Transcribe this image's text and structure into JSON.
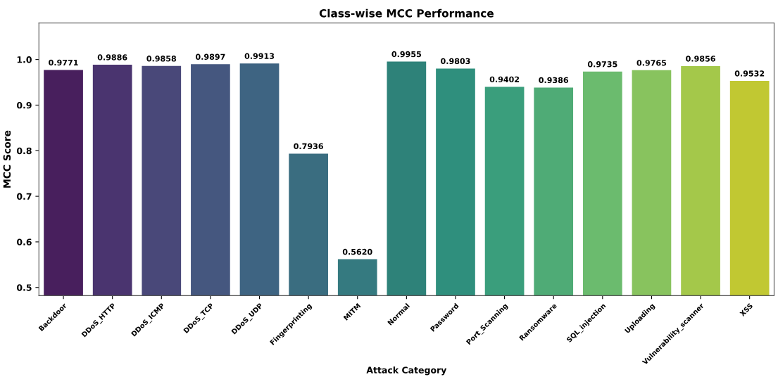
{
  "chart_data": {
    "type": "bar",
    "title": "Class-wise MCC Performance",
    "xlabel": "Attack Category",
    "ylabel": "MCC Score",
    "categories": [
      "Backdoor",
      "DDoS_HTTP",
      "DDoS_ICMP",
      "DDoS_TCP",
      "DDoS_UDP",
      "Fingerprinting",
      "MITM",
      "Normal",
      "Password",
      "Port_Scanning",
      "Ransomware",
      "SQL_injection",
      "Uploading",
      "Vulnerability_scanner",
      "XSS"
    ],
    "values": [
      0.9771,
      0.9886,
      0.9858,
      0.9897,
      0.9913,
      0.7936,
      0.562,
      0.9955,
      0.9803,
      0.9402,
      0.9386,
      0.9735,
      0.9765,
      0.9856,
      0.9532
    ],
    "value_labels": [
      "0.9771",
      "0.9886",
      "0.9858",
      "0.9897",
      "0.9913",
      "0.7936",
      "0.5620",
      "0.9955",
      "0.9803",
      "0.9402",
      "0.9386",
      "0.9735",
      "0.9765",
      "0.9856",
      "0.9532"
    ],
    "colors": [
      "#481f5d",
      "#4a346f",
      "#494879",
      "#45577f",
      "#3e6482",
      "#3a6d80",
      "#357a80",
      "#2e8279",
      "#2f8f7d",
      "#3a9e7c",
      "#4fab76",
      "#6bbb6e",
      "#88c35e",
      "#a4c84a",
      "#c1c832"
    ],
    "ylim": [
      0.482,
      1.08
    ],
    "yticks": [
      0.5,
      0.6,
      0.7,
      0.8,
      0.9,
      {
        "value": 1.0,
        "label": "1.0"
      }
    ],
    "grid": false
  }
}
